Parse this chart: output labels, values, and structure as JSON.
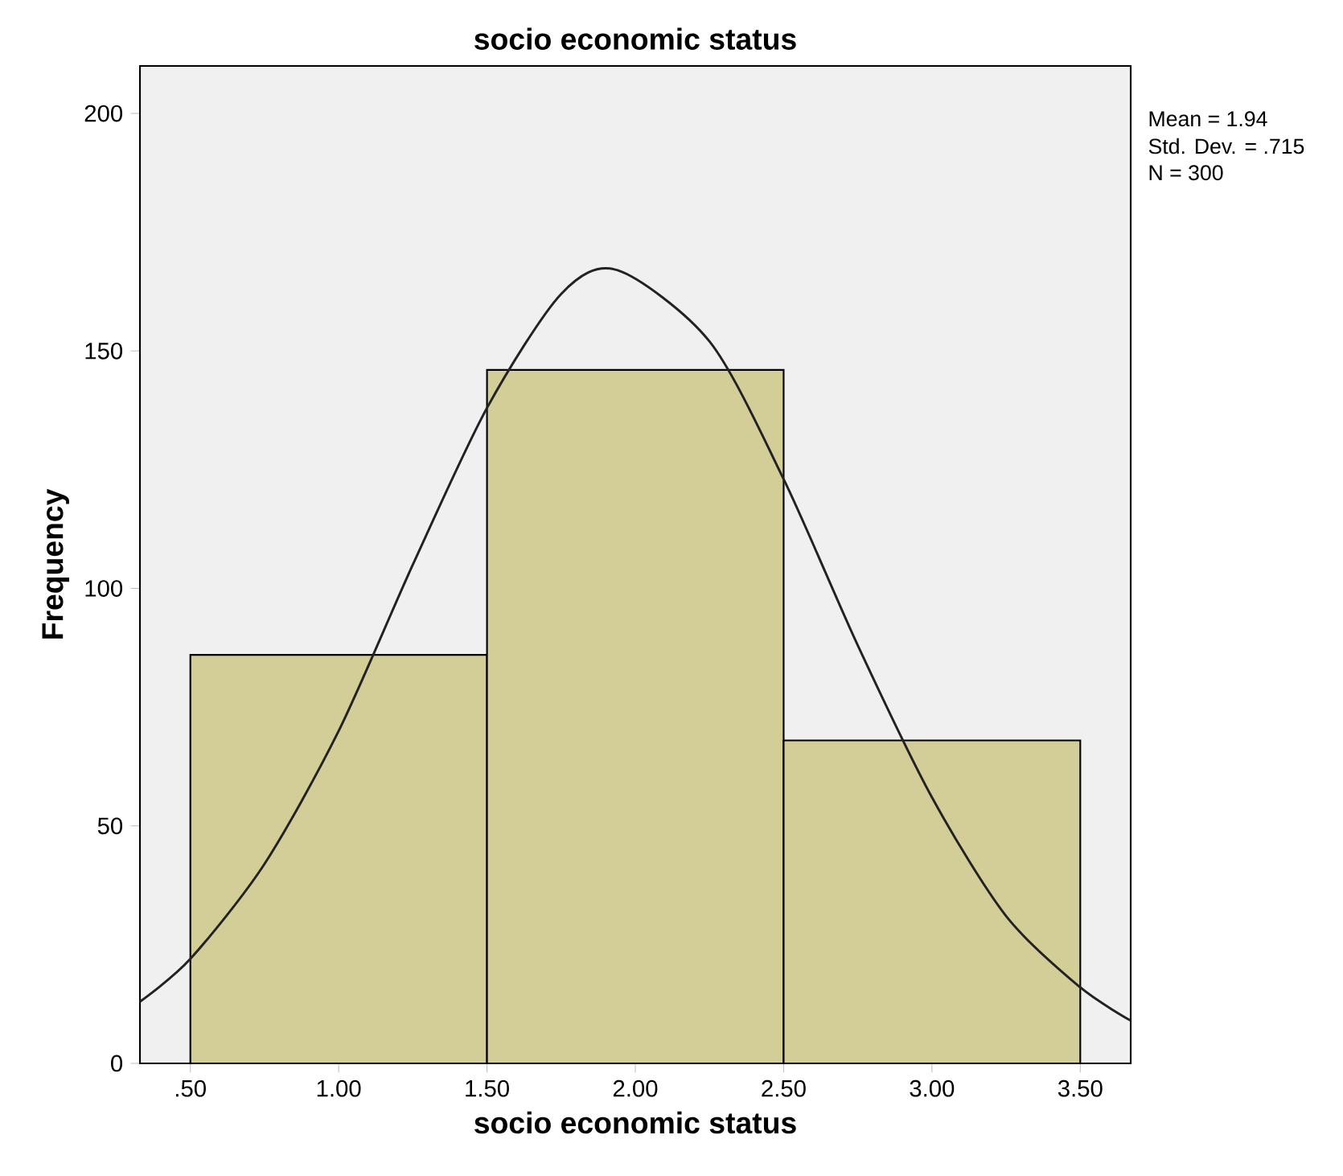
{
  "chart_data": {
    "type": "histogram",
    "title": "socio economic status",
    "xlabel": "socio economic status",
    "ylabel": "Frequency",
    "bins": [
      0.5,
      1.5,
      2.5,
      3.5
    ],
    "values": [
      86,
      146,
      68
    ],
    "color": "#d3ce97",
    "series": [
      {
        "type": "line",
        "color": "#222222",
        "x": [
          0.33,
          0.5,
          0.75,
          1.0,
          1.25,
          1.5,
          1.75,
          1.94,
          2.25,
          2.5,
          2.75,
          3.0,
          3.25,
          3.5,
          3.67
        ],
        "values": [
          13,
          22,
          42,
          70,
          105,
          138,
          162,
          167,
          152,
          123,
          88,
          56,
          31,
          16,
          9
        ]
      }
    ],
    "xlim": [
      0.33,
      3.67
    ],
    "ylim": [
      0,
      210
    ],
    "xticks": [
      {
        "value": 0.5,
        "label": ".50"
      },
      {
        "value": 1.0,
        "label": "1.00"
      },
      {
        "value": 1.5,
        "label": "1.50"
      },
      {
        "value": 2.0,
        "label": "2.00"
      },
      {
        "value": 2.5,
        "label": "2.50"
      },
      {
        "value": 3.0,
        "label": "3.00"
      },
      {
        "value": 3.5,
        "label": "3.50"
      }
    ],
    "yticks": [
      0,
      50,
      100,
      150,
      200
    ],
    "annotations": [
      "Mean = 1.94",
      "Std. Dev. = .715",
      "N = 300"
    ]
  }
}
